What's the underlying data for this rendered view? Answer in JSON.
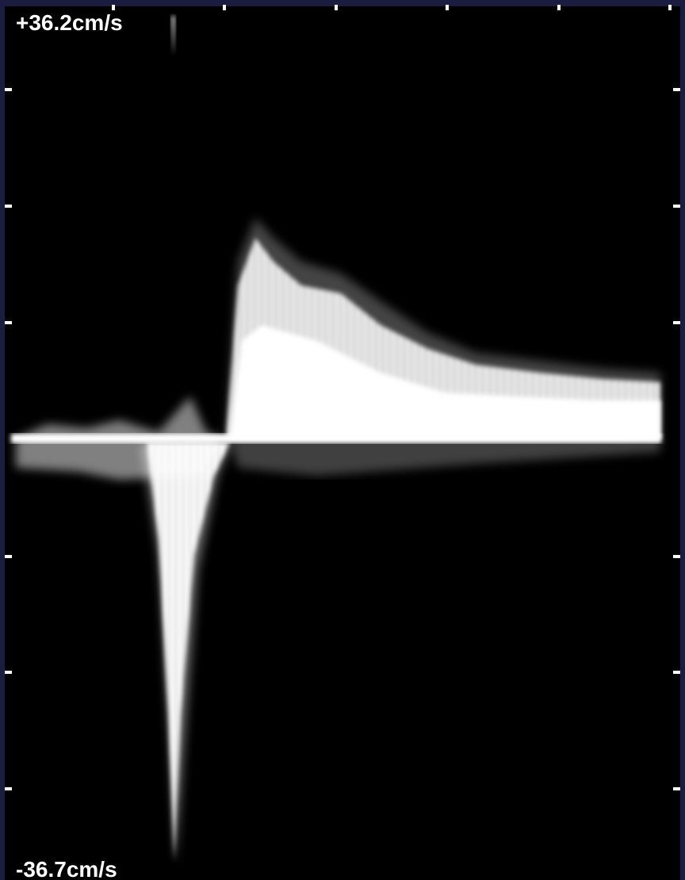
{
  "labels": {
    "top": "+36.2cm/s",
    "bottom": "-36.7cm/s"
  }
}
